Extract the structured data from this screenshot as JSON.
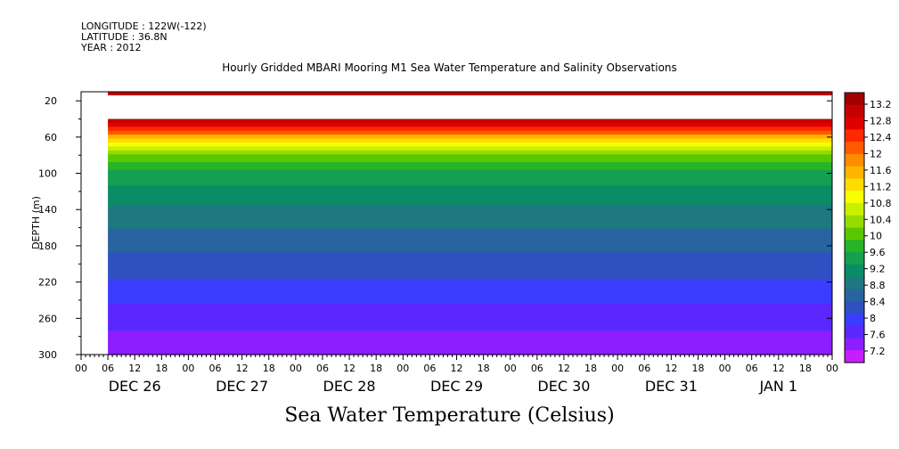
{
  "header": {
    "longitude": "LONGITUDE : 122W(-122)",
    "latitude": "LATITUDE : 36.8N",
    "year": "YEAR : 2012"
  },
  "title": "Hourly Gridded MBARI Mooring M1 Sea Water Temperature and Salinity Observations",
  "footer_label": "Sea Water Temperature (Celsius)",
  "chart_data": {
    "type": "heatmap",
    "title": "Hourly Gridded MBARI Mooring M1 Sea Water Temperature and Salinity Observations",
    "ylabel": "DEPTH (m)",
    "ylim": [
      300,
      0
    ],
    "yticks": [
      20,
      60,
      100,
      140,
      180,
      220,
      260,
      300
    ],
    "x_hour_ticks": [
      "00",
      "06",
      "12",
      "18",
      "00",
      "06",
      "12",
      "18",
      "00",
      "06",
      "12",
      "18",
      "00",
      "06",
      "12",
      "18",
      "00",
      "06",
      "12",
      "18",
      "00",
      "06",
      "12",
      "18",
      "00",
      "06",
      "12",
      "18",
      "00"
    ],
    "x_day_labels": [
      "DEC 26",
      "DEC 27",
      "DEC 28",
      "DEC 29",
      "DEC 30",
      "DEC 31",
      "JAN  1"
    ],
    "time_range_hours": [
      0,
      168
    ],
    "data_start_hour": 6,
    "colorbar_label": "Sea Water Temperature (Celsius)",
    "colorbar_ticks": [
      13.2,
      12.8,
      12.4,
      12,
      11.6,
      11.2,
      10.8,
      10.4,
      10,
      9.6,
      9.2,
      8.8,
      8.4,
      8,
      7.6,
      7.2
    ],
    "colorbar_colors": [
      "#a00000",
      "#c40000",
      "#e00000",
      "#ff2800",
      "#ff5a00",
      "#ff8c00",
      "#ffb400",
      "#ffdc00",
      "#f8ff00",
      "#c8f000",
      "#96dc00",
      "#5ac800",
      "#28b428",
      "#14a050",
      "#0a8c64",
      "#1e7880",
      "#2864a0",
      "#2f50c0",
      "#3a3cff",
      "#5a28ff",
      "#8c1eff",
      "#c81eff"
    ],
    "color_scale_min": 7.2,
    "color_scale_max": 13.4,
    "depth_profile": [
      {
        "depth": 10,
        "temp": 13.2
      },
      {
        "depth": 40,
        "temp": 13.2
      },
      {
        "depth": 50,
        "temp": 12.6
      },
      {
        "depth": 60,
        "temp": 11.6
      },
      {
        "depth": 70,
        "temp": 10.8
      },
      {
        "depth": 80,
        "temp": 10.2
      },
      {
        "depth": 100,
        "temp": 9.6
      },
      {
        "depth": 140,
        "temp": 9.1
      },
      {
        "depth": 180,
        "temp": 8.7
      },
      {
        "depth": 220,
        "temp": 8.3
      },
      {
        "depth": 260,
        "temp": 7.9
      },
      {
        "depth": 300,
        "temp": 7.5
      }
    ],
    "surface_band_temp": 13.0,
    "missing_depth_range": [
      14,
      40
    ],
    "grid": false
  }
}
